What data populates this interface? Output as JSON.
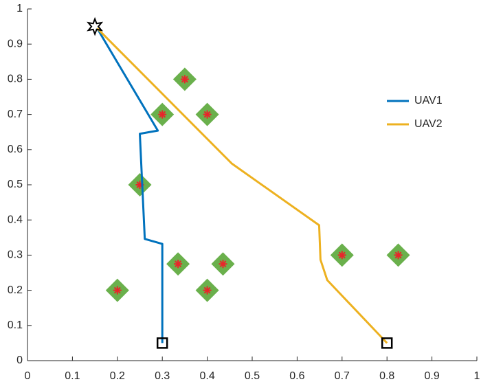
{
  "chart_data": {
    "type": "line",
    "xlim": [
      0,
      1
    ],
    "ylim": [
      0,
      1
    ],
    "xticks": [
      0,
      0.1,
      0.2,
      0.3,
      0.4,
      0.5,
      0.6,
      0.7,
      0.8,
      0.9,
      1
    ],
    "yticks": [
      0,
      0.1,
      0.2,
      0.3,
      0.4,
      0.5,
      0.6,
      0.7,
      0.8,
      0.9,
      1
    ],
    "legend": "upper right",
    "series": [
      {
        "name": "UAV1",
        "color": "#0072bd",
        "x": [
          0.155,
          0.29,
          0.25,
          0.261,
          0.3,
          0.3
        ],
        "y": [
          0.945,
          0.654,
          0.645,
          0.346,
          0.332,
          0.05
        ]
      },
      {
        "name": "UAV2",
        "color": "#edb120",
        "x": [
          0.155,
          0.455,
          0.649,
          0.652,
          0.667,
          0.8
        ],
        "y": [
          0.945,
          0.56,
          0.385,
          0.287,
          0.229,
          0.05
        ]
      }
    ],
    "targets": {
      "color": "#6ab04c",
      "marker_color": "#e8262b",
      "x": [
        0.35,
        0.3,
        0.4,
        0.25,
        0.7,
        0.825,
        0.335,
        0.435,
        0.2,
        0.4
      ],
      "y": [
        0.8,
        0.7,
        0.7,
        0.5,
        0.3,
        0.3,
        0.275,
        0.275,
        0.2,
        0.2
      ]
    },
    "start": {
      "x": [
        0.15
      ],
      "y": [
        0.95
      ]
    },
    "ends": {
      "x": [
        0.3,
        0.8
      ],
      "y": [
        0.05,
        0.05
      ]
    }
  }
}
